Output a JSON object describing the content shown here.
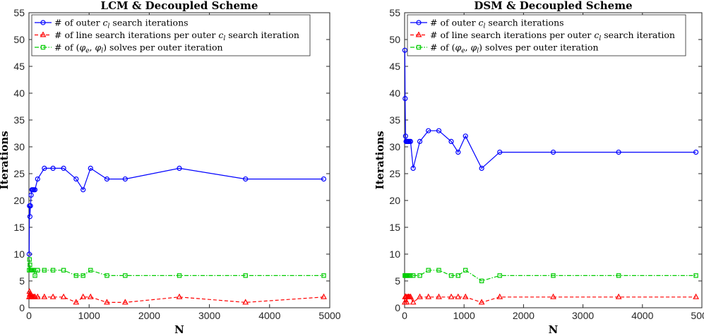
{
  "chart_data": [
    {
      "type": "line",
      "title": "LCM & Decoupled Scheme",
      "xlabel": "N",
      "ylabel": "Iterations",
      "xlim": [
        0,
        5000
      ],
      "ylim": [
        0,
        55
      ],
      "xticks": [
        0,
        1000,
        2000,
        3000,
        4000,
        5000
      ],
      "yticks": [
        0,
        5,
        10,
        15,
        20,
        25,
        30,
        35,
        40,
        45,
        50,
        55
      ],
      "legend": "top-left",
      "series": [
        {
          "name": "# of outer c_l search iterations",
          "color": "#0000ff",
          "marker": "circle",
          "dash": "solid",
          "x": [
            4,
            9,
            16,
            25,
            36,
            49,
            64,
            81,
            100,
            144,
            256,
            400,
            576,
            784,
            900,
            1024,
            1296,
            1600,
            2500,
            3600,
            4900
          ],
          "y": [
            10,
            19,
            17,
            19,
            21,
            22,
            22,
            22,
            22,
            24,
            26,
            26,
            26,
            24,
            22,
            26,
            24,
            24,
            26,
            24,
            24
          ]
        },
        {
          "name": "# of line search iterations per outer c_l search iteration",
          "color": "#ff0000",
          "marker": "triangle",
          "dash": "dashed",
          "x": [
            4,
            9,
            16,
            25,
            36,
            49,
            64,
            81,
            100,
            144,
            256,
            400,
            576,
            784,
            900,
            1024,
            1296,
            1600,
            2500,
            3600,
            4900
          ],
          "y": [
            2,
            3,
            2.5,
            2,
            2,
            2,
            2,
            2,
            2,
            2,
            2,
            2,
            2,
            1,
            2,
            2,
            1,
            1,
            2,
            1,
            2
          ]
        },
        {
          "name": "# of (φe, φl) solves per outer iteration",
          "color": "#00cc00",
          "marker": "square",
          "dash": "dashdot",
          "x": [
            4,
            9,
            16,
            25,
            36,
            49,
            64,
            81,
            100,
            144,
            256,
            400,
            576,
            784,
            900,
            1024,
            1296,
            1600,
            2500,
            3600,
            4900
          ],
          "y": [
            7,
            9,
            8,
            7,
            7,
            7,
            7,
            7,
            6,
            7,
            7,
            7,
            7,
            6,
            6,
            7,
            6,
            6,
            6,
            6,
            6
          ]
        }
      ]
    },
    {
      "type": "line",
      "title": "DSM & Decoupled Scheme",
      "xlabel": "N",
      "ylabel": "Iterations",
      "xlim": [
        0,
        5000
      ],
      "ylim": [
        0,
        55
      ],
      "xticks": [
        0,
        1000,
        2000,
        3000,
        4000,
        5000
      ],
      "yticks": [
        0,
        5,
        10,
        15,
        20,
        25,
        30,
        35,
        40,
        45,
        50,
        55
      ],
      "legend": "top-left",
      "series": [
        {
          "name": "# of outer c_l search iterations",
          "color": "#0000ff",
          "marker": "circle",
          "dash": "solid",
          "x": [
            4,
            9,
            16,
            25,
            36,
            49,
            64,
            81,
            100,
            144,
            256,
            400,
            576,
            784,
            900,
            1024,
            1296,
            1600,
            2500,
            3600,
            4900
          ],
          "y": [
            48,
            39,
            32,
            31,
            31,
            31,
            31,
            31,
            31,
            26,
            31,
            33,
            33,
            31,
            29,
            32,
            26,
            29,
            29,
            29,
            29
          ]
        },
        {
          "name": "# of line search iterations per outer c_l search iteration",
          "color": "#ff0000",
          "marker": "triangle",
          "dash": "dashed",
          "x": [
            4,
            9,
            16,
            25,
            36,
            49,
            64,
            81,
            100,
            144,
            256,
            400,
            576,
            784,
            900,
            1024,
            1296,
            1600,
            2500,
            3600,
            4900
          ],
          "y": [
            1,
            2,
            2,
            2,
            1,
            2,
            2,
            2,
            2,
            1,
            2,
            2,
            2,
            2,
            2,
            2,
            1,
            2,
            2,
            2,
            2
          ]
        },
        {
          "name": "# of (φe, φl) solves per outer iteration",
          "color": "#00cc00",
          "marker": "square",
          "dash": "dashdot",
          "x": [
            4,
            9,
            16,
            25,
            36,
            49,
            64,
            81,
            100,
            144,
            256,
            400,
            576,
            784,
            900,
            1024,
            1296,
            1600,
            2500,
            3600,
            4900
          ],
          "y": [
            6,
            6,
            6,
            6,
            6,
            6,
            6,
            6,
            6,
            6,
            6,
            7,
            7,
            6,
            6,
            7,
            5,
            6,
            6,
            6,
            6
          ]
        }
      ]
    }
  ],
  "legend_text": {
    "outer": {
      "prefix": "# of outer ",
      "var": "c",
      "sub": "l",
      "suffix": " search iterations"
    },
    "line": {
      "prefix": "# of line search iterations per outer ",
      "var": "c",
      "sub": "l",
      "suffix": " search iteration"
    },
    "solves": {
      "prefix": "# of (",
      "phi1": "φ",
      "sub1": "e",
      "mid": ", ",
      "phi2": "φ",
      "sub2": "l",
      "suffix": ") solves per outer iteration"
    }
  }
}
